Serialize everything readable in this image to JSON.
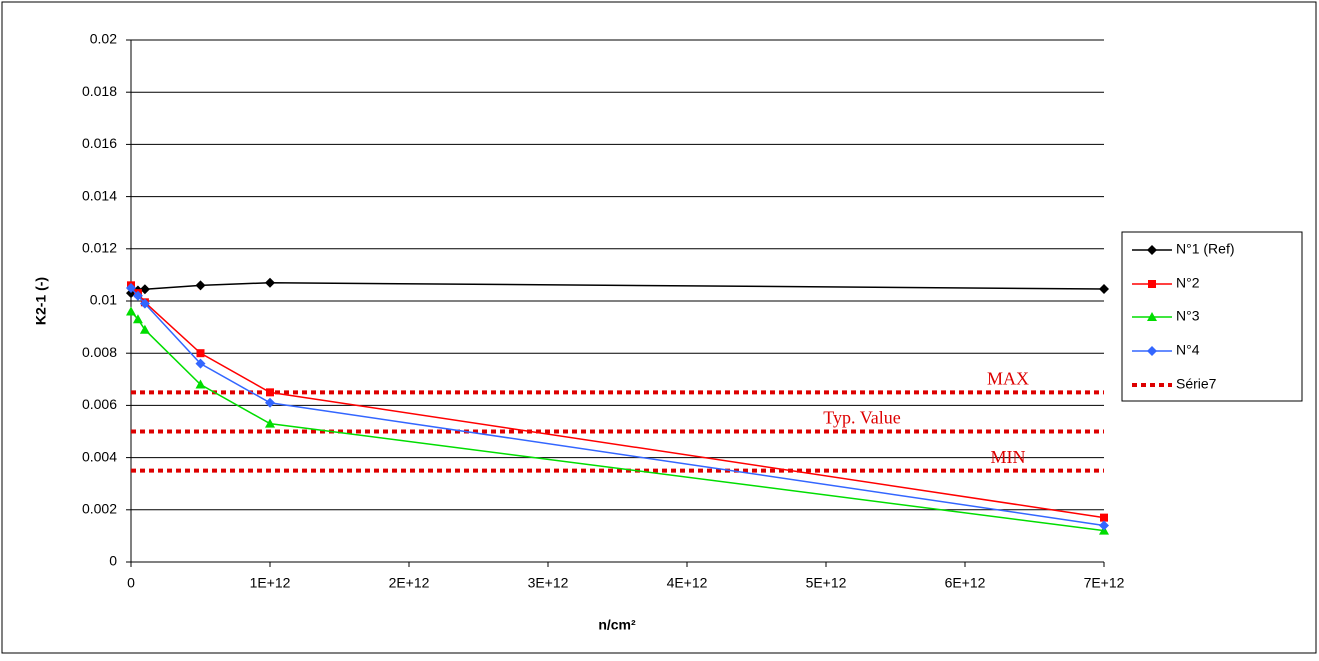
{
  "chart_data": {
    "type": "line",
    "xlabel": "n/cm²",
    "ylabel": "K2-1 (-)",
    "x": [
      0,
      50000000000,
      100000000000,
      500000000000,
      1000000000000,
      7000000000000
    ],
    "series": [
      {
        "name": "N°1 (Ref)",
        "color": "#000000",
        "marker": "diamond",
        "values": [
          0.0103,
          0.0104,
          0.01045,
          0.0106,
          0.0107,
          0.01046
        ]
      },
      {
        "name": "N°2",
        "color": "#ff0000",
        "marker": "square",
        "values": [
          0.0106,
          0.0103,
          0.00995,
          0.008,
          0.0065,
          0.0017
        ]
      },
      {
        "name": "N°3",
        "color": "#00dd00",
        "marker": "triangle",
        "values": [
          0.0096,
          0.0093,
          0.0089,
          0.0068,
          0.0053,
          0.0012
        ]
      },
      {
        "name": "N°4",
        "color": "#3366ff",
        "marker": "diamond",
        "values": [
          0.0105,
          0.0102,
          0.0099,
          0.0076,
          0.0061,
          0.0014
        ]
      }
    ],
    "reference": {
      "name": "Série7",
      "color": "#dd0000",
      "style": "dotted",
      "lines": [
        {
          "label": "MAX",
          "value": 0.0065
        },
        {
          "label": "Typ. Value",
          "value": 0.005
        },
        {
          "label": "MIN",
          "value": 0.0035
        }
      ]
    },
    "xlim": [
      0,
      7000000000000
    ],
    "xticks": [
      0,
      {
        "value": 1000000000000,
        "label": "1E+12"
      },
      {
        "value": 2000000000000,
        "label": "2E+12"
      },
      {
        "value": 3000000000000,
        "label": "3E+12"
      },
      {
        "value": 4000000000000,
        "label": "4E+12"
      },
      {
        "value": 5000000000000,
        "label": "5E+12"
      },
      {
        "value": 6000000000000,
        "label": "6E+12"
      },
      {
        "value": 7000000000000,
        "label": "7E+12"
      }
    ],
    "ylim": [
      0,
      0.02
    ],
    "yticks": [
      0,
      0.002,
      0.004,
      0.006,
      0.008,
      0.01,
      0.012,
      0.014,
      0.016,
      0.018,
      0.02
    ],
    "grid": true,
    "legend": "right"
  }
}
